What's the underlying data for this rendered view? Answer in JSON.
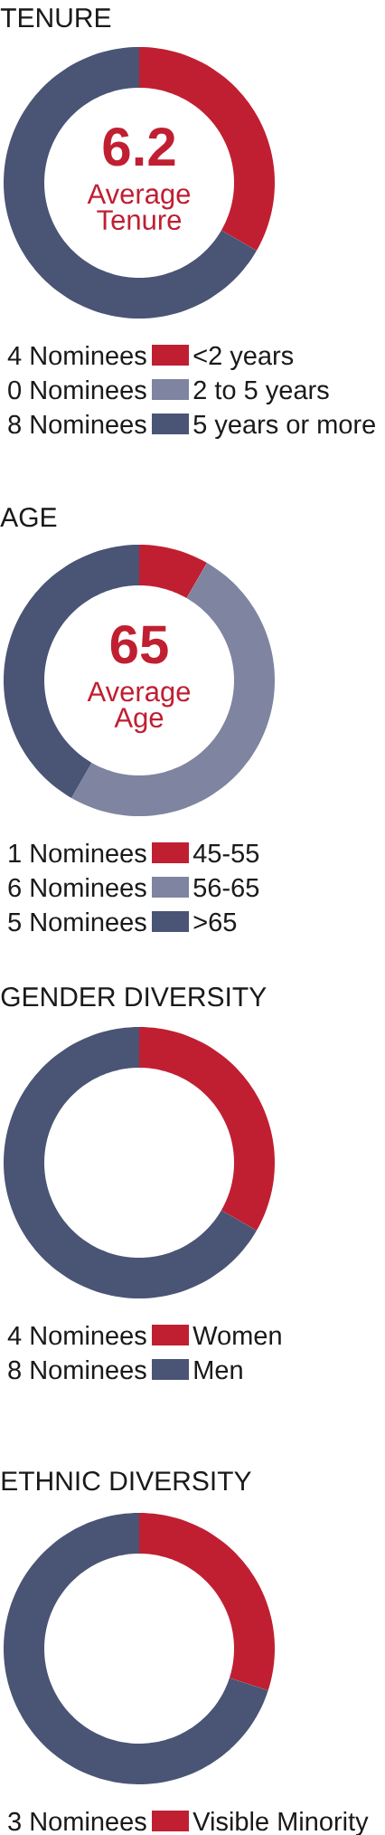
{
  "chart_data": [
    {
      "type": "donut",
      "title": "TENURE",
      "categories": [
        "<2 years",
        "2 to 5 years",
        "5 years or more"
      ],
      "values": [
        4,
        0,
        8
      ],
      "colors": [
        "#c01f32",
        "#7f84a0",
        "#4a5475"
      ],
      "value_labels": [
        "4 Nominees",
        "0 Nominees",
        "8 Nominees"
      ],
      "legend": "bottom",
      "annotations": [
        "6.2",
        "Average Tenure"
      ]
    },
    {
      "type": "donut",
      "title": "AGE",
      "categories": [
        "45-55",
        "56-65",
        ">65"
      ],
      "values": [
        1,
        6,
        5
      ],
      "colors": [
        "#c01f32",
        "#7f84a0",
        "#4a5475"
      ],
      "value_labels": [
        "1 Nominees",
        "6 Nominees",
        "5 Nominees"
      ],
      "legend": "bottom",
      "annotations": [
        "65",
        "Average Age"
      ]
    },
    {
      "type": "donut",
      "title": "GENDER DIVERSITY",
      "categories": [
        "Women",
        "Men"
      ],
      "values": [
        4,
        8
      ],
      "colors": [
        "#c01f32",
        "#4a5475"
      ],
      "value_labels": [
        "4 Nominees",
        "8 Nominees"
      ],
      "legend": "bottom"
    },
    {
      "type": "donut",
      "title": "ETHNIC DIVERSITY",
      "categories": [
        "Visible Minority",
        null
      ],
      "values": [
        3,
        7
      ],
      "colors": [
        "#c01f32",
        "#4a5475"
      ],
      "value_labels": [
        "3 Nominees",
        null
      ],
      "legend": "bottom"
    }
  ]
}
